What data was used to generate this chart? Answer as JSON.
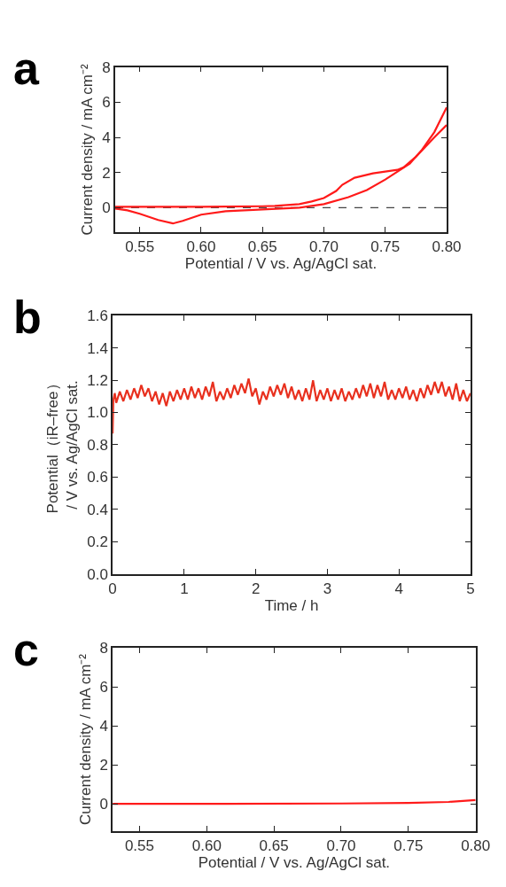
{
  "chart_data": [
    {
      "type": "line",
      "title": "a",
      "xlabel": "Potential / V vs. Ag/AgCl sat.",
      "ylabel": "Current density / mA cm⁻²",
      "xlim": [
        0.53,
        0.8
      ],
      "ylim": [
        -1.4,
        8
      ],
      "xticks": [
        {
          "value": 0.55,
          "label": "0.55"
        },
        {
          "value": 0.6,
          "label": "0.60"
        },
        {
          "value": 0.65,
          "label": "0.65"
        },
        {
          "value": 0.7,
          "label": "0.70"
        },
        {
          "value": 0.75,
          "label": "0.75"
        },
        {
          "value": 0.8,
          "label": "0.80"
        }
      ],
      "yticks": [
        0,
        2,
        4,
        6,
        8
      ],
      "grid": false,
      "marker": "none",
      "line_style": "solid",
      "ref_lines": [
        {
          "axis": "y",
          "value": 0,
          "color": "#444444",
          "line_style": "dashed"
        }
      ],
      "series": [
        {
          "color": "#ff1a1a",
          "x": [
            0.53,
            0.55,
            0.6,
            0.65,
            0.66,
            0.68,
            0.69,
            0.7,
            0.71,
            0.715,
            0.725,
            0.74,
            0.75,
            0.76,
            0.765,
            0.775,
            0.79,
            0.8
          ],
          "values": [
            0.05,
            0.05,
            0.05,
            0.08,
            0.1,
            0.2,
            0.35,
            0.55,
            0.95,
            1.3,
            1.7,
            1.95,
            2.05,
            2.15,
            2.3,
            2.9,
            4.0,
            4.7
          ]
        },
        {
          "color": "#ff1a1a",
          "x": [
            0.53,
            0.54,
            0.55,
            0.565,
            0.577,
            0.585,
            0.6,
            0.62,
            0.65,
            0.68,
            0.7,
            0.72,
            0.735,
            0.75,
            0.77,
            0.78,
            0.79,
            0.8
          ],
          "values": [
            -0.05,
            -0.15,
            -0.35,
            -0.7,
            -0.9,
            -0.75,
            -0.4,
            -0.2,
            -0.1,
            0.0,
            0.2,
            0.6,
            1.0,
            1.6,
            2.5,
            3.3,
            4.3,
            5.7
          ]
        }
      ]
    },
    {
      "type": "line",
      "title": "b",
      "xlabel": "Time / h",
      "ylabel": "Potential（iR–free）\n/ V vs. Ag/AgCl sat.",
      "xlim": [
        0,
        5
      ],
      "ylim": [
        0,
        1.6
      ],
      "xticks": [
        0,
        1,
        2,
        3,
        4,
        5
      ],
      "yticks": [
        {
          "value": 0,
          "label": "0.0"
        },
        {
          "value": 0.2,
          "label": "0.2"
        },
        {
          "value": 0.4,
          "label": "0.4"
        },
        {
          "value": 0.6,
          "label": "0.6"
        },
        {
          "value": 0.8,
          "label": "0.8"
        },
        {
          "value": 1.0,
          "label": "1.0"
        },
        {
          "value": 1.2,
          "label": "1.2"
        },
        {
          "value": 1.4,
          "label": "1.4"
        },
        {
          "value": 1.6,
          "label": "1.6"
        }
      ],
      "grid": false,
      "marker": "none",
      "line_style": "solid",
      "series": [
        {
          "color": "#e8301e",
          "x": [
            0,
            0.01,
            0.03,
            0.05,
            0.1,
            0.15,
            0.2,
            0.25,
            0.3,
            0.35,
            0.4,
            0.45,
            0.5,
            0.55,
            0.6,
            0.65,
            0.7,
            0.75,
            0.8,
            0.85,
            0.9,
            0.95,
            1.0,
            1.05,
            1.1,
            1.15,
            1.2,
            1.25,
            1.3,
            1.35,
            1.4,
            1.45,
            1.5,
            1.55,
            1.6,
            1.65,
            1.7,
            1.75,
            1.8,
            1.85,
            1.9,
            1.95,
            2.0,
            2.05,
            2.1,
            2.15,
            2.2,
            2.25,
            2.3,
            2.35,
            2.4,
            2.45,
            2.5,
            2.55,
            2.6,
            2.65,
            2.7,
            2.75,
            2.8,
            2.85,
            2.9,
            2.95,
            3.0,
            3.05,
            3.1,
            3.15,
            3.2,
            3.25,
            3.3,
            3.35,
            3.4,
            3.45,
            3.5,
            3.55,
            3.6,
            3.65,
            3.7,
            3.75,
            3.8,
            3.85,
            3.9,
            3.95,
            4.0,
            4.05,
            4.1,
            4.15,
            4.2,
            4.25,
            4.3,
            4.35,
            4.4,
            4.45,
            4.5,
            4.55,
            4.6,
            4.65,
            4.7,
            4.75,
            4.8,
            4.85,
            4.9,
            4.95,
            5.0
          ],
          "values": [
            0.87,
            1.08,
            1.12,
            1.06,
            1.13,
            1.07,
            1.14,
            1.08,
            1.15,
            1.09,
            1.17,
            1.1,
            1.15,
            1.07,
            1.13,
            1.05,
            1.12,
            1.04,
            1.13,
            1.07,
            1.14,
            1.08,
            1.15,
            1.08,
            1.16,
            1.09,
            1.15,
            1.08,
            1.16,
            1.1,
            1.19,
            1.07,
            1.13,
            1.08,
            1.15,
            1.09,
            1.17,
            1.11,
            1.18,
            1.12,
            1.21,
            1.1,
            1.15,
            1.05,
            1.13,
            1.08,
            1.16,
            1.1,
            1.17,
            1.11,
            1.18,
            1.09,
            1.16,
            1.08,
            1.14,
            1.07,
            1.15,
            1.08,
            1.2,
            1.07,
            1.14,
            1.08,
            1.15,
            1.07,
            1.14,
            1.08,
            1.15,
            1.07,
            1.13,
            1.08,
            1.15,
            1.09,
            1.17,
            1.1,
            1.18,
            1.09,
            1.17,
            1.1,
            1.19,
            1.08,
            1.14,
            1.08,
            1.15,
            1.09,
            1.16,
            1.08,
            1.14,
            1.07,
            1.15,
            1.09,
            1.17,
            1.11,
            1.19,
            1.12,
            1.19,
            1.1,
            1.16,
            1.08,
            1.18,
            1.07,
            1.14,
            1.07,
            1.12
          ]
        }
      ]
    },
    {
      "type": "line",
      "title": "c",
      "xlabel": "Potential / V vs. Ag/AgCl sat.",
      "ylabel": "Current density / mA cm⁻²",
      "xlim": [
        0.53,
        0.8
      ],
      "ylim": [
        -1.4,
        8
      ],
      "xticks": [
        {
          "value": 0.55,
          "label": "0.55"
        },
        {
          "value": 0.6,
          "label": "0.60"
        },
        {
          "value": 0.65,
          "label": "0.65"
        },
        {
          "value": 0.7,
          "label": "0.70"
        },
        {
          "value": 0.75,
          "label": "0.75"
        },
        {
          "value": 0.8,
          "label": "0.80"
        }
      ],
      "yticks": [
        0,
        2,
        4,
        6,
        8
      ],
      "grid": false,
      "marker": "none",
      "line_style": "solid",
      "series": [
        {
          "color": "#ff1a1a",
          "x": [
            0.53,
            0.6,
            0.7,
            0.75,
            0.78,
            0.8
          ],
          "values": [
            0.0,
            0.0,
            0.02,
            0.05,
            0.1,
            0.2
          ]
        }
      ]
    }
  ]
}
